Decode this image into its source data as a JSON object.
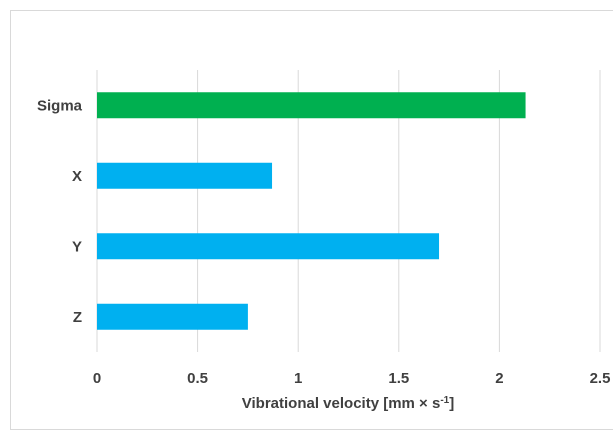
{
  "chart_data": {
    "type": "bar",
    "orientation": "horizontal",
    "categories": [
      "Sigma",
      "X",
      "Y",
      "Z"
    ],
    "values": [
      2.13,
      0.87,
      1.7,
      0.75
    ],
    "bar_colors": [
      "#00b050",
      "#00b0f0",
      "#00b0f0",
      "#00b0f0"
    ],
    "xlim": [
      0,
      2.5
    ],
    "xticks": [
      "0",
      "0.5",
      "1",
      "1.5",
      "2",
      "2.5"
    ],
    "xlabel": "Vibrational velocity [mm × s",
    "xlabel_sup": "-1",
    "xlabel_end": "]",
    "grid": "vertical"
  }
}
